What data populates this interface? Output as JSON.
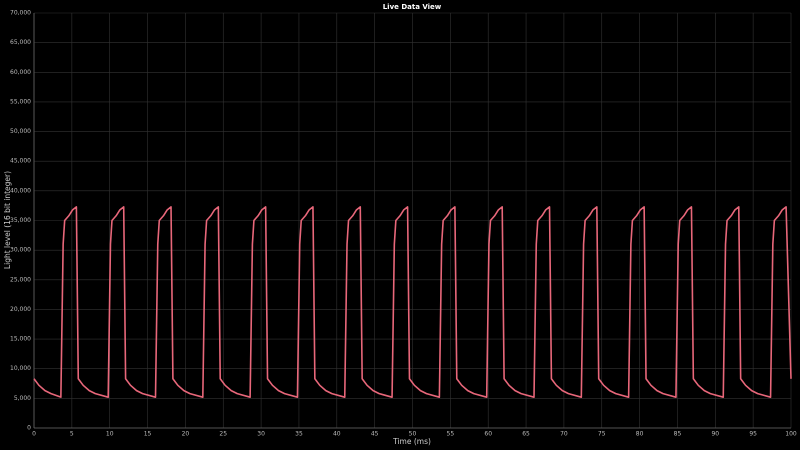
{
  "chart_data": {
    "type": "line",
    "title": "Live Data View",
    "x_label": "Time (ms)",
    "y_label": "Light level (16 bit integer)",
    "color": "#e8677a",
    "grid": true,
    "xlim": [
      0,
      100
    ],
    "ylim": [
      0,
      70000
    ],
    "xticks": [
      0,
      5,
      10,
      15,
      20,
      25,
      30,
      35,
      40,
      45,
      50,
      55,
      60,
      65,
      70,
      75,
      80,
      85,
      90,
      95,
      100
    ],
    "yticks": [
      0,
      {
        "value": 5000,
        "label": "5,000"
      },
      {
        "value": 10000,
        "label": "10,000"
      },
      {
        "value": 15000,
        "label": "15,000"
      },
      {
        "value": 20000,
        "label": "20,000"
      },
      {
        "value": 25000,
        "label": "25,000"
      },
      {
        "value": 30000,
        "label": "30,000"
      },
      {
        "value": 35000,
        "label": "35,000"
      },
      {
        "value": 40000,
        "label": "40,000"
      },
      {
        "value": 45000,
        "label": "45,000"
      },
      {
        "value": 50000,
        "label": "50,000"
      },
      {
        "value": 55000,
        "label": "55,000"
      },
      {
        "value": 60000,
        "label": "60,000"
      },
      {
        "value": 65000,
        "label": "65,000"
      },
      {
        "value": 70000,
        "label": "70,000"
      }
    ],
    "x": [
      0,
      0.65,
      1.45,
      2.25,
      3.55,
      3.85,
      4.05,
      4.6,
      5.1,
      5.6,
      5.85,
      6.5,
      7.3,
      8.1,
      9.8,
      10.1,
      10.3,
      10.85,
      11.35,
      11.85,
      12.1,
      12.75,
      13.55,
      14.35,
      16.05,
      16.35,
      16.55,
      17.1,
      17.6,
      18.1,
      18.35,
      19,
      19.8,
      20.6,
      22.3,
      22.6,
      22.8,
      23.35,
      23.85,
      24.35,
      24.6,
      25.25,
      26.05,
      26.85,
      28.55,
      28.85,
      29.05,
      29.6,
      30.1,
      30.6,
      30.85,
      31.5,
      32.3,
      33.1,
      34.8,
      35.1,
      35.3,
      35.85,
      36.35,
      36.85,
      37.1,
      37.75,
      38.55,
      39.35,
      41.05,
      41.35,
      41.55,
      42.1,
      42.6,
      43.1,
      43.35,
      44,
      44.8,
      45.6,
      47.3,
      47.6,
      47.8,
      48.35,
      48.85,
      49.35,
      49.6,
      50.25,
      51.05,
      51.85,
      53.55,
      53.85,
      54.05,
      54.6,
      55.1,
      55.6,
      55.85,
      56.5,
      57.3,
      58.1,
      59.8,
      60.1,
      60.3,
      60.85,
      61.35,
      61.85,
      62.1,
      62.75,
      63.55,
      64.35,
      66.05,
      66.35,
      66.55,
      67.1,
      67.6,
      68.1,
      68.35,
      69,
      69.8,
      70.6,
      72.3,
      72.6,
      72.8,
      73.35,
      73.85,
      74.35,
      74.6,
      75.25,
      76.05,
      76.85,
      78.55,
      78.85,
      79.05,
      79.6,
      80.1,
      80.6,
      80.85,
      81.5,
      82.3,
      83.1,
      84.8,
      85.1,
      85.3,
      85.85,
      86.35,
      86.85,
      87.1,
      87.75,
      88.55,
      89.35,
      91.05,
      91.35,
      91.55,
      92.1,
      92.6,
      93.1,
      93.35,
      94,
      94.8,
      95.6,
      97.3,
      97.6,
      97.8,
      98.35,
      98.85,
      99.35,
      100
    ],
    "values": [
      8300,
      7200,
      6300,
      5800,
      5200,
      31000,
      35000,
      35800,
      36800,
      37300,
      8300,
      7200,
      6300,
      5800,
      5200,
      31000,
      35000,
      35800,
      36800,
      37300,
      8300,
      7200,
      6300,
      5800,
      5200,
      31000,
      35000,
      35800,
      36800,
      37300,
      8300,
      7200,
      6300,
      5800,
      5200,
      31000,
      35000,
      35800,
      36800,
      37300,
      8300,
      7200,
      6300,
      5800,
      5200,
      31000,
      35000,
      35800,
      36800,
      37300,
      8300,
      7200,
      6300,
      5800,
      5200,
      31000,
      35000,
      35800,
      36800,
      37300,
      8300,
      7200,
      6300,
      5800,
      5200,
      31000,
      35000,
      35800,
      36800,
      37300,
      8300,
      7200,
      6300,
      5800,
      5200,
      31000,
      35000,
      35800,
      36800,
      37300,
      8300,
      7200,
      6300,
      5800,
      5200,
      31000,
      35000,
      35800,
      36800,
      37300,
      8300,
      7200,
      6300,
      5800,
      5200,
      31000,
      35000,
      35800,
      36800,
      37300,
      8300,
      7200,
      6300,
      5800,
      5200,
      31000,
      35000,
      35800,
      36800,
      37300,
      8300,
      7200,
      6300,
      5800,
      5200,
      31000,
      35000,
      35800,
      36800,
      37300,
      8300,
      7200,
      6300,
      5800,
      5200,
      31000,
      35000,
      35800,
      36800,
      37300,
      8300,
      7200,
      6300,
      5800,
      5200,
      31000,
      35000,
      35800,
      36800,
      37300,
      8300,
      7200,
      6300,
      5800,
      5200,
      31000,
      35000,
      35800,
      36800,
      37300,
      8300,
      7200,
      6300,
      5800,
      5200,
      31000,
      35000,
      35800,
      36800,
      37300,
      8300
    ]
  }
}
